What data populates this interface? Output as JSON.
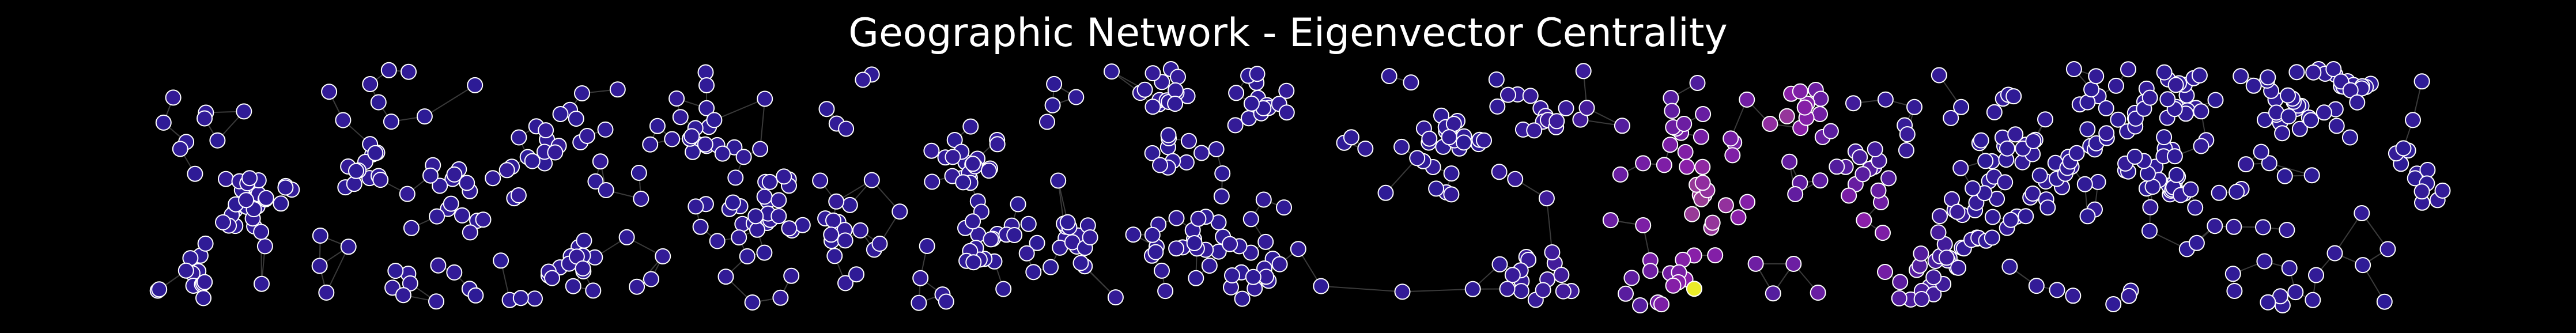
{
  "chart_data": {
    "type": "scatter",
    "subtype": "network-graph",
    "title": "Geographic Network - Eigenvector Centrality",
    "xlabel": "",
    "ylabel": "",
    "axes_visible": false,
    "grid": false,
    "legend": "none",
    "node_count_estimate": 760,
    "color_encoding": "eigenvector centrality (plasma colormap)",
    "colors": {
      "background": "#000000",
      "title": "#ffffff",
      "edge": "#3a3a3a",
      "node_outline": "#ffffff",
      "centrality_low": "#2d1b96",
      "centrality_mid": "#8a1fa8",
      "centrality_high": "#f0f921"
    }
  }
}
